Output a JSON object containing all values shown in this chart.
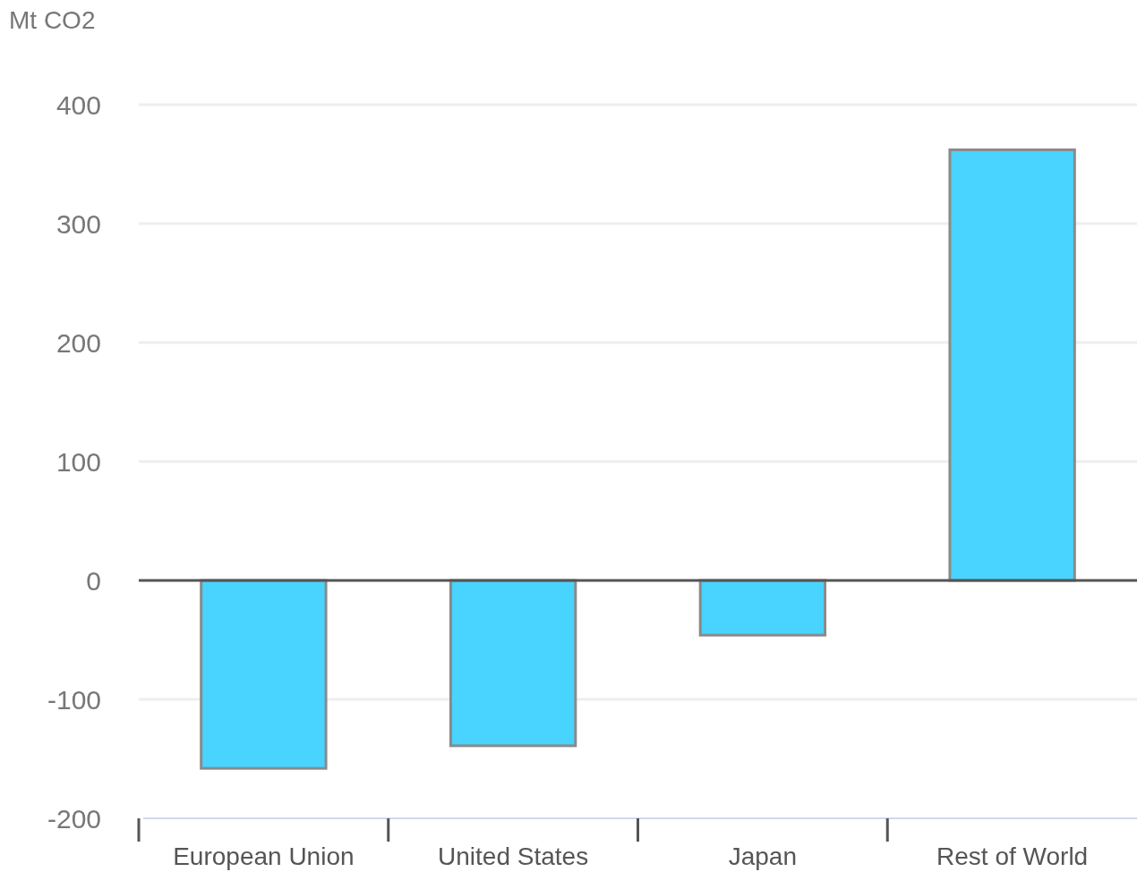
{
  "chart_data": {
    "type": "bar",
    "ylabel": "Mt CO2",
    "categories": [
      "European Union",
      "United States",
      "Japan",
      "Rest of World"
    ],
    "values": [
      -158,
      -139,
      -46,
      362
    ],
    "color": "#48d4ff",
    "ylim": [
      -200,
      400
    ],
    "yticks": [
      -200,
      -100,
      0,
      100,
      200,
      300,
      400
    ],
    "grid": "y"
  }
}
